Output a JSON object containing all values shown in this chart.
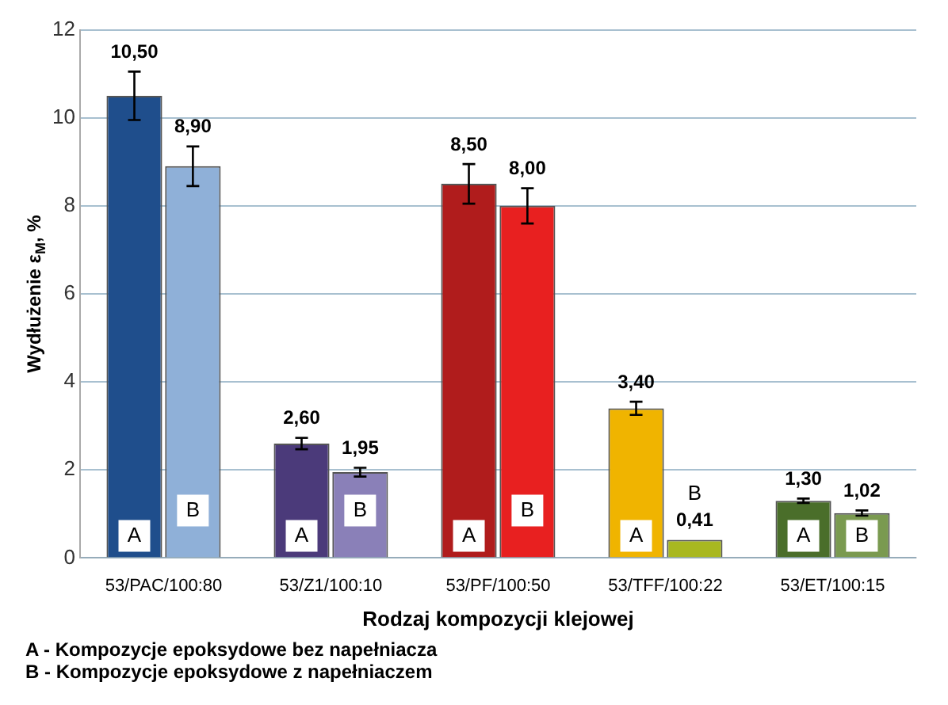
{
  "chart_data": {
    "type": "bar",
    "ylabel": "Wydłużenie ε$_{M}$, %",
    "xlabel": "Rodzaj kompozycji klejowej",
    "categories": [
      "53/PAC/100:80",
      "53/Z1/100:10",
      "53/PF/100:50",
      "53/TFF/100:22",
      "53/ET/100:15"
    ],
    "series": [
      {
        "name": "A",
        "colors": [
          "#1f4e8c",
          "#4b3a7a",
          "#b01c1c",
          "#f0b400",
          "#4a6e2a"
        ],
        "values": [
          10.5,
          2.6,
          8.5,
          3.4,
          1.3
        ],
        "errors": [
          0.55,
          0.13,
          0.45,
          0.15,
          0.05
        ],
        "value_labels": [
          "10,50",
          "2,60",
          "8,50",
          "3,40",
          "1,30"
        ]
      },
      {
        "name": "B",
        "colors": [
          "#8fb0d8",
          "#8a80b8",
          "#e82020",
          "#a8b820",
          "#7a9a50"
        ],
        "values": [
          8.9,
          1.95,
          8.0,
          0.41,
          1.02
        ],
        "errors": [
          0.45,
          0.1,
          0.4,
          null,
          0.06
        ],
        "value_labels": [
          "8,90",
          "1,95",
          "8,00",
          "0,41",
          "1,02"
        ]
      }
    ],
    "ylim": [
      0,
      12
    ],
    "yticks": [
      0,
      2,
      4,
      6,
      8,
      10,
      12
    ],
    "grid": "y",
    "legend": false,
    "annotations": [
      "A - Kompozycje epoksydowe bez napełniacza",
      "B - Kompozycje epoksydowe z napełniaczem"
    ]
  }
}
